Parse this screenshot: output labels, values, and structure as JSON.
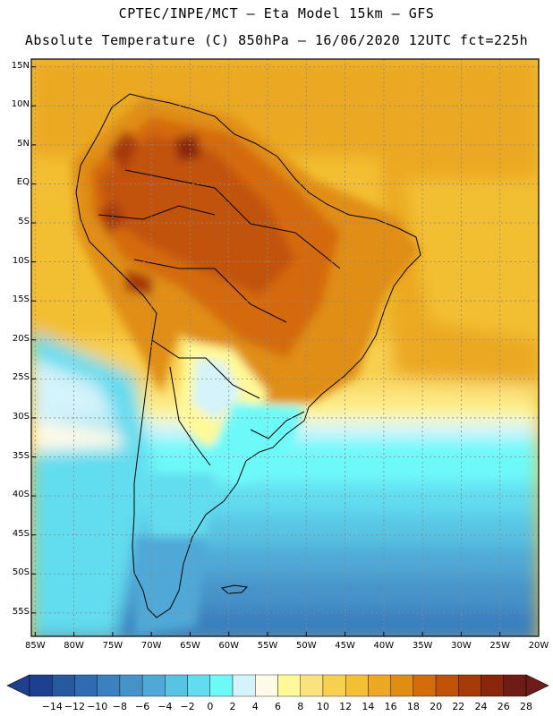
{
  "header": {
    "line1": "CPTEC/INPE/MCT –  Eta Model 15km – GFS",
    "line2": "Absolute Temperature (C) 850hPa – 16/06/2020 12UTC fct=225h"
  },
  "map": {
    "lat_labels": [
      "15N",
      "10N",
      "5N",
      "EQ",
      "5S",
      "10S",
      "15S",
      "20S",
      "25S",
      "30S",
      "35S",
      "40S",
      "45S",
      "50S",
      "55S"
    ],
    "lon_labels": [
      "85W",
      "80W",
      "75W",
      "70W",
      "65W",
      "60W",
      "55W",
      "50W",
      "45W",
      "40W",
      "35W",
      "30W",
      "25W",
      "20W"
    ],
    "lat_range": [
      16,
      -58
    ],
    "lon_range": [
      -85.5,
      -20
    ]
  },
  "colorbar": {
    "labels": [
      "-14",
      "-12",
      "-10",
      "-8",
      "-6",
      "-4",
      "-2",
      "0",
      "2",
      "4",
      "6",
      "8",
      "10",
      "12",
      "14",
      "16",
      "18",
      "20",
      "22",
      "24",
      "26",
      "28"
    ],
    "colors": [
      "#1f3f8f",
      "#27599f",
      "#2f6db0",
      "#3b80bf",
      "#4693c9",
      "#4fa8d6",
      "#58c4e3",
      "#62dcef",
      "#6ef9f9",
      "#d4f3fb",
      "#fffbe8",
      "#fff99a",
      "#fae37d",
      "#f8d050",
      "#f3bf33",
      "#eba820",
      "#e08e13",
      "#d46b0d",
      "#c15309",
      "#a63b08",
      "#89260b",
      "#6e1d16"
    ]
  }
}
